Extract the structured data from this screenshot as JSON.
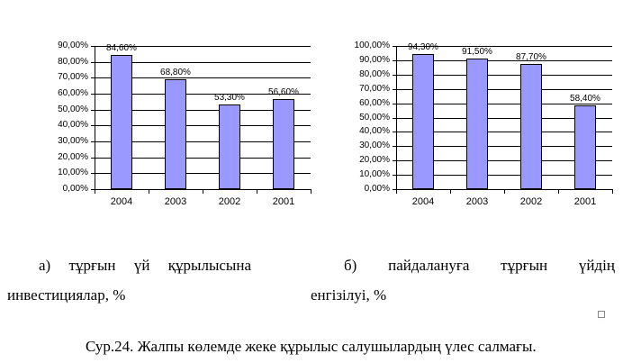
{
  "page": {
    "background": "#ffffff"
  },
  "chart_data": [
    {
      "name": "housing-construction-investments",
      "type": "bar",
      "title": "",
      "xlabel": "",
      "ylabel": "",
      "categories": [
        "2004",
        "2003",
        "2002",
        "2001"
      ],
      "values": [
        84.6,
        68.8,
        53.3,
        56.6
      ],
      "value_labels": [
        "84,60%",
        "68,80%",
        "53,30%",
        "56,60%"
      ],
      "ytick_labels": [
        "0,00%",
        "10,00%",
        "20,00%",
        "30,00%",
        "40,00%",
        "50,00%",
        "60,00%",
        "70,00%",
        "80,00%",
        "90,00%"
      ],
      "ylim": [
        0,
        90
      ],
      "ytick_step": 10,
      "grid": true,
      "legend_position": "none",
      "bar_color": "#9999FF",
      "bar_border_color": "#000000",
      "gridline_color": "#000000"
    },
    {
      "name": "housing-commissioning",
      "type": "bar",
      "title": "",
      "xlabel": "",
      "ylabel": "",
      "categories": [
        "2004",
        "2003",
        "2002",
        "2001"
      ],
      "values": [
        94.3,
        91.5,
        87.7,
        58.4
      ],
      "value_labels": [
        "94,30%",
        "91,50%",
        "87,70%",
        "58,40%"
      ],
      "ytick_labels": [
        "0,00%",
        "10,00%",
        "20,00%",
        "30,00%",
        "40,00%",
        "50,00%",
        "60,00%",
        "70,00%",
        "80,00%",
        "90,00%",
        "100,00%"
      ],
      "ylim": [
        0,
        100
      ],
      "ytick_step": 10,
      "grid": true,
      "legend_position": "none",
      "bar_color": "#9999FF",
      "bar_border_color": "#000000",
      "gridline_color": "#000000"
    }
  ],
  "captions": {
    "a": {
      "line1": "а) тұрғын үй құрылысына",
      "line2": "инвестициялар, %"
    },
    "b": {
      "line1": "б) пайдалануға тұрғын үйдің",
      "line2": "енгізілуі, %"
    }
  },
  "figure_caption": "Сур.24. Жалпы көлемде жеке құрылыс салушылардың үлес салмағы."
}
